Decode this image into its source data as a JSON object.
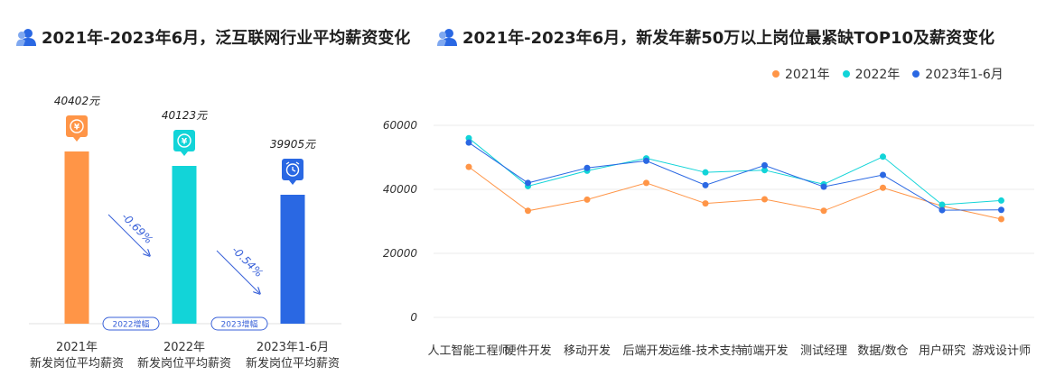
{
  "titles": {
    "left": "2021年-2023年6月，泛互联网行业平均薪资变化",
    "right": "2021年-2023年6月，新发年薪50万以上岗位最紧缺TOP10及薪资变化"
  },
  "colors": {
    "orange": "#FF9547",
    "cyan": "#12D4D8",
    "blue": "#2A68E3",
    "arrow": "#3A62D9",
    "title_icon": "#2A68E3"
  },
  "icons": {
    "title": "user-group-icon",
    "currency": "yuan-icon",
    "clock": "clock-icon"
  },
  "chart_data": [
    {
      "type": "bar",
      "categories": [
        "2021年",
        "2022年",
        "2023年1-6月"
      ],
      "category_sub": [
        "新发岗位平均薪资",
        "新发岗位平均薪资",
        "新发岗位平均薪资"
      ],
      "values": [
        40402,
        40123,
        39905
      ],
      "value_labels": [
        "40402元",
        "40123元",
        "39905元"
      ],
      "changes": [
        "-0.69%",
        "-0.54%"
      ],
      "change_badges": [
        "2022增幅",
        "2023增幅"
      ]
    },
    {
      "type": "line",
      "categories": [
        "人工智能工程师",
        "硬件开发",
        "移动开发",
        "后端开发",
        "运维-技术支持",
        "前端开发",
        "测试经理",
        "数据/数仓",
        "用户研究",
        "游戏设计师"
      ],
      "yticks": [
        "0",
        "20000",
        "40000",
        "60000"
      ],
      "ylim": [
        0,
        60000
      ],
      "series": [
        {
          "name": "2021年",
          "color": "#FF9547",
          "values": [
            47000,
            33300,
            36800,
            42000,
            35600,
            36900,
            33300,
            40500,
            34800,
            30700
          ]
        },
        {
          "name": "2022年",
          "color": "#12D4D8",
          "values": [
            56000,
            41000,
            45800,
            49700,
            45300,
            46000,
            41600,
            50200,
            35200,
            36500
          ]
        },
        {
          "name": "2023年1-6月",
          "color": "#2A68E3",
          "values": [
            54600,
            42000,
            46700,
            48900,
            41300,
            47500,
            40800,
            44500,
            33500,
            33600
          ]
        }
      ]
    }
  ]
}
